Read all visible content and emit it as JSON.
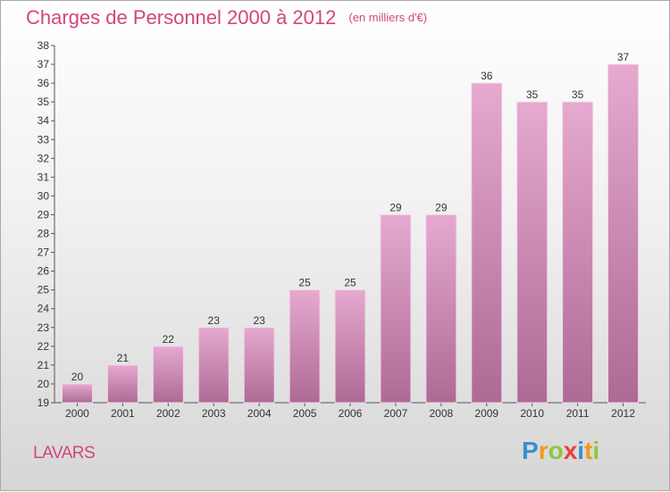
{
  "header": {
    "title": "Charges de Personnel 2000 à 2012",
    "subtitle": "(en milliers d'€)"
  },
  "footer": {
    "town": "LAVARS",
    "brand": {
      "letters": [
        {
          "char": "P",
          "color": "#3a8fd0"
        },
        {
          "char": "r",
          "color": "#f29a1e"
        },
        {
          "char": "o",
          "color": "#8cc63f"
        },
        {
          "char": "x",
          "color": "#e8403a"
        },
        {
          "char": "i",
          "color": "#3a8fd0"
        },
        {
          "char": "t",
          "color": "#f29a1e"
        },
        {
          "char": "i",
          "color": "#8cc63f"
        }
      ]
    }
  },
  "colors": {
    "accent": "#d2457f",
    "bar_top": "#e6a9cf",
    "bar_bottom": "#ad6a95"
  },
  "chart_data": {
    "type": "bar",
    "title": "Charges de Personnel 2000 à 2012",
    "subtitle": "(en milliers d'€)",
    "xlabel": "",
    "ylabel": "",
    "categories": [
      "2000",
      "2001",
      "2002",
      "2003",
      "2004",
      "2005",
      "2006",
      "2007",
      "2008",
      "2009",
      "2010",
      "2011",
      "2012"
    ],
    "values": [
      20,
      21,
      22,
      23,
      23,
      25,
      25,
      29,
      29,
      36,
      35,
      35,
      37
    ],
    "ylim": [
      19,
      38
    ],
    "yticks": [
      19,
      20,
      21,
      22,
      23,
      24,
      25,
      26,
      27,
      28,
      29,
      30,
      31,
      32,
      33,
      34,
      35,
      36,
      37,
      38
    ],
    "grid": false,
    "legend": "none"
  }
}
